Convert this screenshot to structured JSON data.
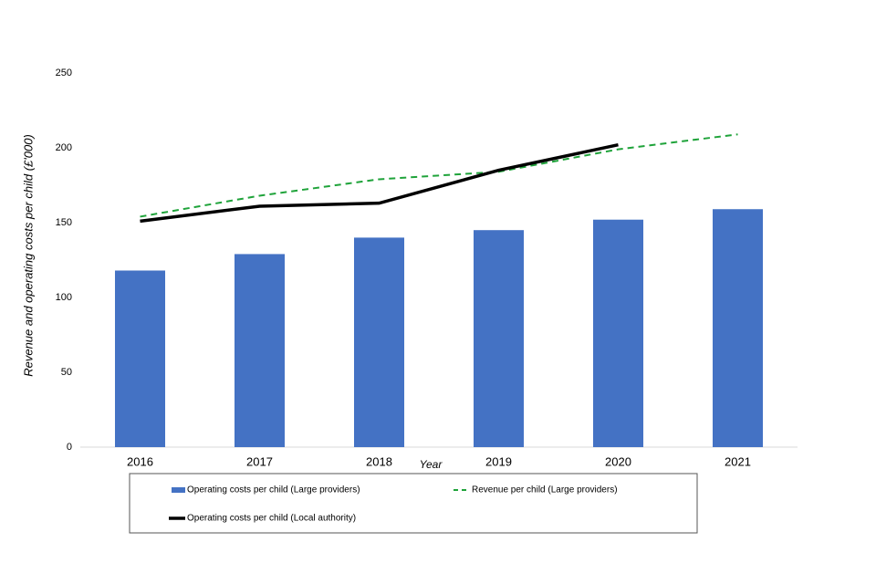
{
  "chart_data": {
    "type": "bar",
    "categories": [
      "2016",
      "2017",
      "2018",
      "2019",
      "2020",
      "2021"
    ],
    "x_label": "Year",
    "y_label": "Revenue and operating costs per child (£'000)",
    "ylim": [
      0,
      250
    ],
    "yticks": [
      0,
      50,
      100,
      150,
      200,
      250
    ],
    "grid": false,
    "series": [
      {
        "name": "Operating costs per child (Large providers)",
        "type": "bar",
        "color": "#4472c4",
        "values": [
          118,
          129,
          140,
          145,
          152,
          159
        ]
      },
      {
        "name": "Revenue per child (Large providers)",
        "type": "line",
        "style": "dashed",
        "color": "#1fa33a",
        "values": [
          154,
          168,
          179,
          184,
          199,
          209
        ]
      },
      {
        "name": "Operating costs per child (Local authority)",
        "type": "line",
        "style": "solid",
        "color": "#000000",
        "values": [
          151,
          161,
          163,
          185,
          202,
          null
        ]
      }
    ]
  }
}
